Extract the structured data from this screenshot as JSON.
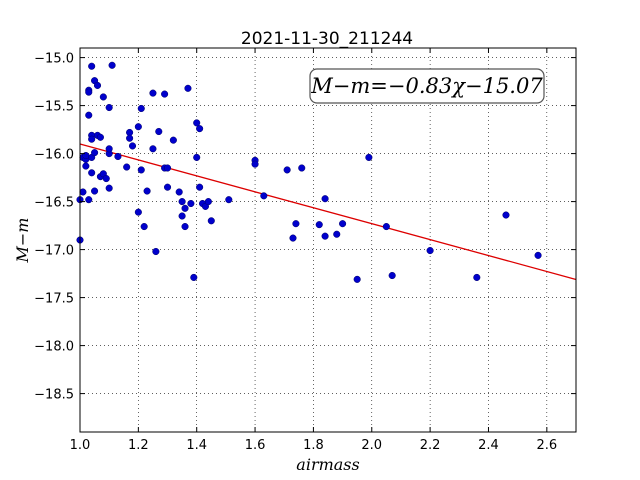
{
  "chart_data": {
    "type": "scatter",
    "title": "2021-11-30_211244",
    "xlabel": "airmass",
    "ylabel": "M−m",
    "xlim": [
      1.0,
      2.7
    ],
    "ylim": [
      -18.9,
      -14.9
    ],
    "y_inverted": true,
    "grid": true,
    "x_ticks": [
      "1.0",
      "1.2",
      "1.4",
      "1.6",
      "1.8",
      "2.0",
      "2.2",
      "2.4",
      "2.6"
    ],
    "y_ticks": [
      "−15.0",
      "−15.5",
      "−16.0",
      "−16.5",
      "−17.0",
      "−17.5",
      "−18.0",
      "−18.5"
    ],
    "annotation": "M−m=−0.83χ−15.07",
    "fit": {
      "slope": -0.83,
      "intercept": -15.07,
      "color": "#dd0000"
    },
    "point_color": "#0000cc",
    "points": [
      [
        1.0,
        -16.48
      ],
      [
        1.0,
        -16.9
      ],
      [
        1.01,
        -16.4
      ],
      [
        1.01,
        -16.04
      ],
      [
        1.02,
        -16.13
      ],
      [
        1.02,
        -16.06
      ],
      [
        1.02,
        -16.02
      ],
      [
        1.03,
        -16.48
      ],
      [
        1.03,
        -15.34
      ],
      [
        1.03,
        -15.36
      ],
      [
        1.03,
        -15.6
      ],
      [
        1.04,
        -15.81
      ],
      [
        1.04,
        -15.85
      ],
      [
        1.04,
        -16.2
      ],
      [
        1.04,
        -16.04
      ],
      [
        1.04,
        -15.09
      ],
      [
        1.05,
        -15.24
      ],
      [
        1.05,
        -16.39
      ],
      [
        1.05,
        -15.99
      ],
      [
        1.06,
        -15.29
      ],
      [
        1.06,
        -15.81
      ],
      [
        1.07,
        -15.83
      ],
      [
        1.07,
        -16.24
      ],
      [
        1.08,
        -15.41
      ],
      [
        1.08,
        -16.21
      ],
      [
        1.09,
        -16.26
      ],
      [
        1.1,
        -16.36
      ],
      [
        1.1,
        -16.0
      ],
      [
        1.1,
        -15.95
      ],
      [
        1.1,
        -15.52
      ],
      [
        1.11,
        -15.08
      ],
      [
        1.13,
        -16.03
      ],
      [
        1.16,
        -16.14
      ],
      [
        1.17,
        -15.78
      ],
      [
        1.17,
        -15.84
      ],
      [
        1.18,
        -15.92
      ],
      [
        1.2,
        -15.72
      ],
      [
        1.2,
        -16.61
      ],
      [
        1.21,
        -15.53
      ],
      [
        1.21,
        -16.17
      ],
      [
        1.22,
        -16.76
      ],
      [
        1.23,
        -16.39
      ],
      [
        1.25,
        -15.37
      ],
      [
        1.25,
        -15.95
      ],
      [
        1.26,
        -17.02
      ],
      [
        1.27,
        -15.77
      ],
      [
        1.29,
        -15.38
      ],
      [
        1.29,
        -16.15
      ],
      [
        1.3,
        -16.35
      ],
      [
        1.3,
        -16.15
      ],
      [
        1.32,
        -15.86
      ],
      [
        1.34,
        -16.4
      ],
      [
        1.35,
        -16.5
      ],
      [
        1.35,
        -16.65
      ],
      [
        1.36,
        -16.57
      ],
      [
        1.36,
        -16.76
      ],
      [
        1.37,
        -15.32
      ],
      [
        1.38,
        -16.52
      ],
      [
        1.39,
        -17.29
      ],
      [
        1.4,
        -16.04
      ],
      [
        1.4,
        -15.68
      ],
      [
        1.41,
        -15.74
      ],
      [
        1.41,
        -16.35
      ],
      [
        1.42,
        -16.52
      ],
      [
        1.43,
        -16.55
      ],
      [
        1.44,
        -16.5
      ],
      [
        1.45,
        -16.7
      ],
      [
        1.51,
        -16.48
      ],
      [
        1.6,
        -16.07
      ],
      [
        1.6,
        -16.11
      ],
      [
        1.63,
        -16.44
      ],
      [
        1.71,
        -16.17
      ],
      [
        1.73,
        -16.88
      ],
      [
        1.74,
        -16.73
      ],
      [
        1.76,
        -16.15
      ],
      [
        1.82,
        -16.74
      ],
      [
        1.84,
        -16.86
      ],
      [
        1.84,
        -16.47
      ],
      [
        1.88,
        -16.84
      ],
      [
        1.9,
        -16.73
      ],
      [
        1.95,
        -17.31
      ],
      [
        1.99,
        -16.04
      ],
      [
        2.05,
        -16.76
      ],
      [
        2.07,
        -17.27
      ],
      [
        2.2,
        -17.01
      ],
      [
        2.36,
        -17.29
      ],
      [
        2.46,
        -16.64
      ],
      [
        2.57,
        -17.06
      ]
    ]
  }
}
